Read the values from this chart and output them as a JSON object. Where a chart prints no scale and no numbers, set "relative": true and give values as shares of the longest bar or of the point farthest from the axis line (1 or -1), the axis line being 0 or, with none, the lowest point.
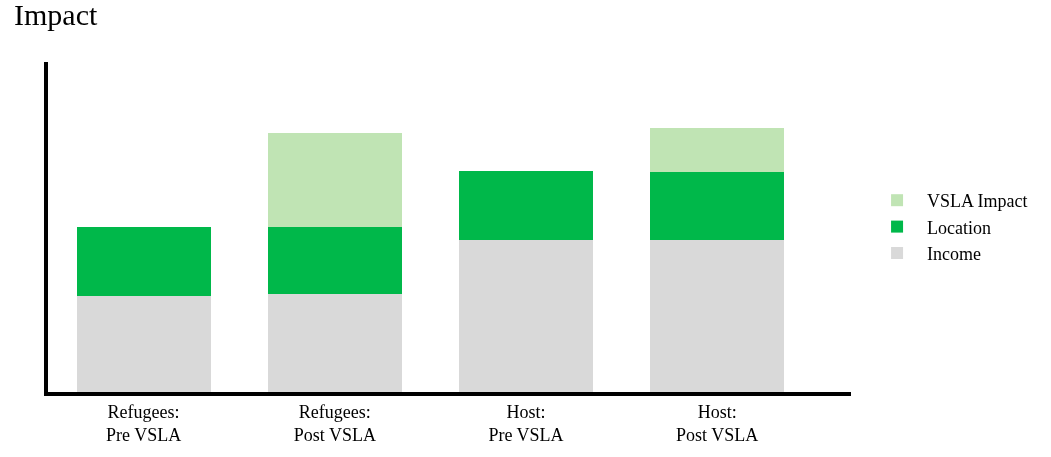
{
  "chart_data": {
    "type": "bar",
    "stacked": true,
    "relative": true,
    "ylabel": "Impact",
    "categories": [
      "Refugees:\nPre VSLA",
      "Refugees:\nPost VSLA",
      "Host:\nPre VSLA",
      "Host:\nPost VSLA"
    ],
    "series": [
      {
        "name": "Income",
        "color": "#d9d9d9",
        "values": [
          0.364,
          0.372,
          0.577,
          0.577
        ]
      },
      {
        "name": "Location",
        "color": "#00b84a",
        "values": [
          0.261,
          0.253,
          0.261,
          0.257
        ]
      },
      {
        "name": "VSLA Impact",
        "color": "#c0e4b4",
        "values": [
          null,
          0.356,
          null,
          0.166
        ]
      }
    ],
    "legend": "right",
    "grid": false
  }
}
